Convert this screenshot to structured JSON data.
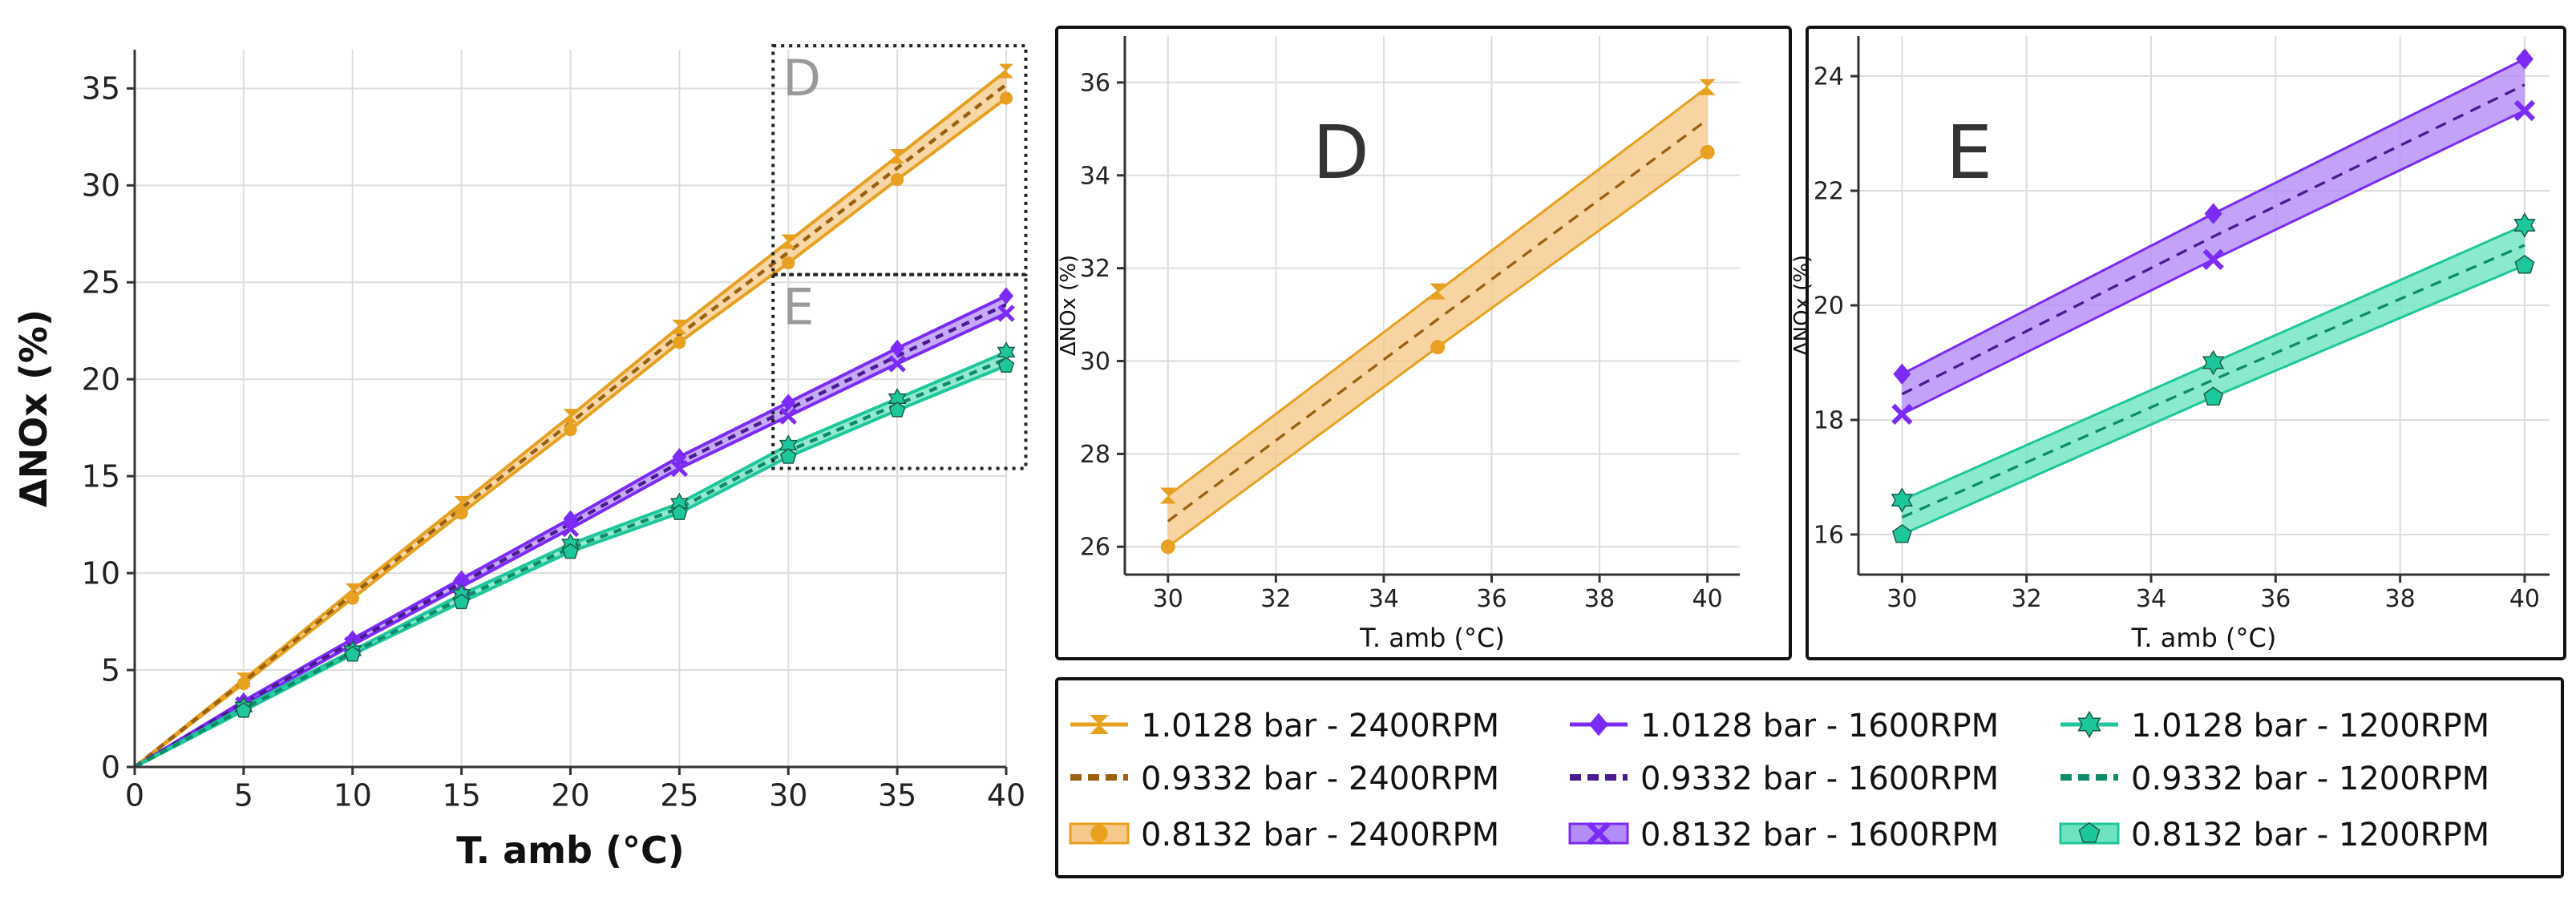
{
  "colors": {
    "orange": "#E8A020",
    "orange_fill": "#F5C98A",
    "orange_dash": "#9A6010",
    "purple": "#7B2BF5",
    "purple_fill": "#B48CF7",
    "purple_dash": "#4A1A90",
    "teal": "#1EC79B",
    "teal_fill": "#6EE3C0",
    "teal_dash": "#0C8C6A",
    "grid": "#dddddd",
    "axis": "#333333"
  },
  "chart_data": [
    {
      "id": "main",
      "type": "line",
      "title": "",
      "xlabel": "T. amb (°C)",
      "ylabel": "ΔNOx (%)",
      "xlim": [
        0,
        40
      ],
      "ylim": [
        0,
        37
      ],
      "xticks": [
        0,
        5,
        10,
        15,
        20,
        25,
        30,
        35,
        40
      ],
      "yticks": [
        0,
        5,
        10,
        15,
        20,
        25,
        30,
        35
      ],
      "grid": true,
      "x": [
        0,
        5,
        10,
        15,
        20,
        25,
        30,
        35,
        40
      ],
      "bands": [
        {
          "name": "2400RPM",
          "color": "orange",
          "upper": [
            0,
            4.5,
            9.1,
            13.6,
            18.1,
            22.7,
            27.1,
            31.5,
            35.9
          ],
          "lower": [
            0,
            4.3,
            8.7,
            13.1,
            17.4,
            21.9,
            26.0,
            30.3,
            34.5
          ]
        },
        {
          "name": "1600RPM",
          "color": "purple",
          "upper": [
            0,
            3.4,
            6.6,
            9.7,
            12.8,
            16.0,
            18.8,
            21.6,
            24.3
          ],
          "lower": [
            0,
            3.2,
            6.3,
            9.3,
            12.3,
            15.4,
            18.1,
            20.8,
            23.4
          ]
        },
        {
          "name": "1200RPM",
          "color": "teal",
          "upper": [
            0,
            3.1,
            6.0,
            8.9,
            11.5,
            13.6,
            16.6,
            19.0,
            21.4
          ],
          "lower": [
            0,
            2.9,
            5.8,
            8.5,
            11.1,
            13.1,
            16.0,
            18.4,
            20.7
          ]
        }
      ],
      "zoom_boxes": [
        {
          "label": "D",
          "x": [
            29.3,
            40.9
          ],
          "y": [
            25.4,
            37.2
          ]
        },
        {
          "label": "E",
          "x": [
            29.3,
            40.9
          ],
          "y": [
            15.4,
            25.4
          ]
        }
      ]
    },
    {
      "id": "D",
      "type": "line",
      "title": "D",
      "xlabel": "T. amb (°C)",
      "ylabel": "ΔNOx (%)",
      "xlim": [
        29.2,
        40.6
      ],
      "ylim": [
        25.4,
        37.0
      ],
      "xticks": [
        30,
        32,
        34,
        36,
        38,
        40
      ],
      "yticks": [
        26,
        28,
        30,
        32,
        34,
        36
      ],
      "grid": true,
      "x": [
        30,
        35,
        40
      ],
      "bands": [
        {
          "name": "2400RPM",
          "color": "orange",
          "upper": [
            27.1,
            31.5,
            35.9
          ],
          "lower": [
            26.0,
            30.3,
            34.5
          ]
        }
      ]
    },
    {
      "id": "E",
      "type": "line",
      "title": "E",
      "xlabel": "T. amb (°C)",
      "ylabel": "ΔNOx (%)",
      "xlim": [
        29.3,
        40.4
      ],
      "ylim": [
        15.3,
        24.7
      ],
      "xticks": [
        30,
        32,
        34,
        36,
        38,
        40
      ],
      "yticks": [
        16,
        18,
        20,
        22,
        24
      ],
      "grid": true,
      "x": [
        30,
        35,
        40
      ],
      "bands": [
        {
          "name": "1600RPM",
          "color": "purple",
          "upper": [
            18.8,
            21.6,
            24.3
          ],
          "lower": [
            18.1,
            20.8,
            23.4
          ]
        },
        {
          "name": "1200RPM",
          "color": "teal",
          "upper": [
            16.6,
            19.0,
            21.4
          ],
          "lower": [
            16.0,
            18.4,
            20.7
          ]
        }
      ]
    }
  ],
  "legend": {
    "entries": [
      {
        "label": "1.0128 bar - 2400RPM",
        "color": "orange",
        "style": "solid",
        "marker": "hourglass"
      },
      {
        "label": "1.0128 bar - 1600RPM",
        "color": "purple",
        "style": "solid",
        "marker": "diamond"
      },
      {
        "label": "1.0128 bar - 1200RPM",
        "color": "teal",
        "style": "solid",
        "marker": "star"
      },
      {
        "label": "0.9332 bar - 2400RPM",
        "color": "orange",
        "style": "dash",
        "marker": "none"
      },
      {
        "label": "0.9332 bar - 1600RPM",
        "color": "purple",
        "style": "dash",
        "marker": "none"
      },
      {
        "label": "0.9332 bar - 1200RPM",
        "color": "teal",
        "style": "dash",
        "marker": "none"
      },
      {
        "label": "0.8132 bar - 2400RPM",
        "color": "orange",
        "style": "band",
        "marker": "circle"
      },
      {
        "label": "0.8132 bar - 1600RPM",
        "color": "purple",
        "style": "band",
        "marker": "cross"
      },
      {
        "label": "0.8132 bar - 1200RPM",
        "color": "teal",
        "style": "band",
        "marker": "pentagon"
      }
    ]
  }
}
